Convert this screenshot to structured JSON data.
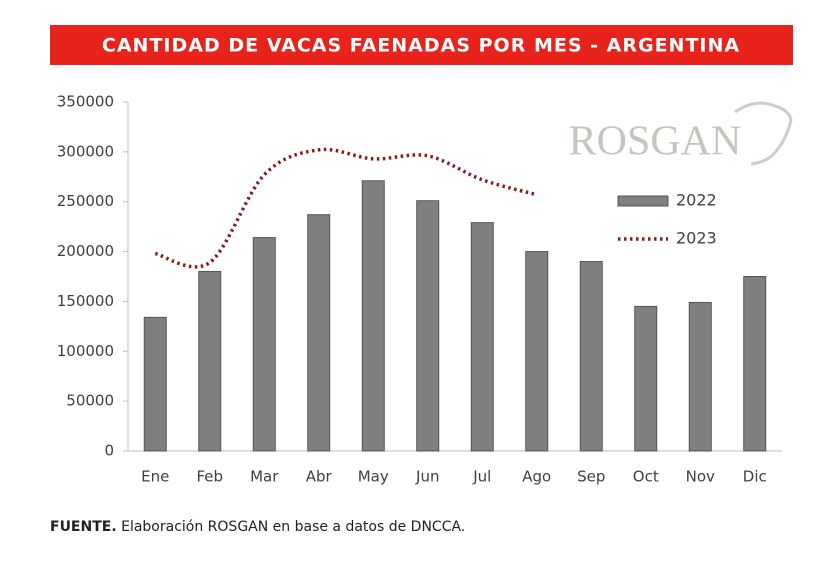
{
  "chart_data": {
    "type": "bar-line",
    "title": "CANTIDAD DE VACAS FAENADAS POR MES - ARGENTINA",
    "categories": [
      "Ene",
      "Feb",
      "Mar",
      "Abr",
      "May",
      "Jun",
      "Jul",
      "Ago",
      "Sep",
      "Oct",
      "Nov",
      "Dic"
    ],
    "series": [
      {
        "name": "2022",
        "type": "bar",
        "color": "#7f7f7f",
        "values": [
          134000,
          180000,
          214000,
          237000,
          271000,
          251000,
          229000,
          200000,
          190000,
          145000,
          149000,
          175000
        ]
      },
      {
        "name": "2023",
        "type": "line",
        "color": "#8b1a1a",
        "dotted": true,
        "smooth": true,
        "values": [
          198000,
          189000,
          277000,
          302000,
          293000,
          296000,
          272000,
          257000,
          null,
          null,
          null,
          null
        ]
      }
    ],
    "ylim": [
      0,
      350000
    ],
    "yticks": [
      0,
      50000,
      100000,
      150000,
      200000,
      250000,
      300000,
      350000
    ],
    "grid": false,
    "legend": "right"
  },
  "logo": "ROSGAN",
  "source": {
    "label": "FUENTE.",
    "text": "Elaboración ROSGAN en base a datos de DNCCA."
  }
}
